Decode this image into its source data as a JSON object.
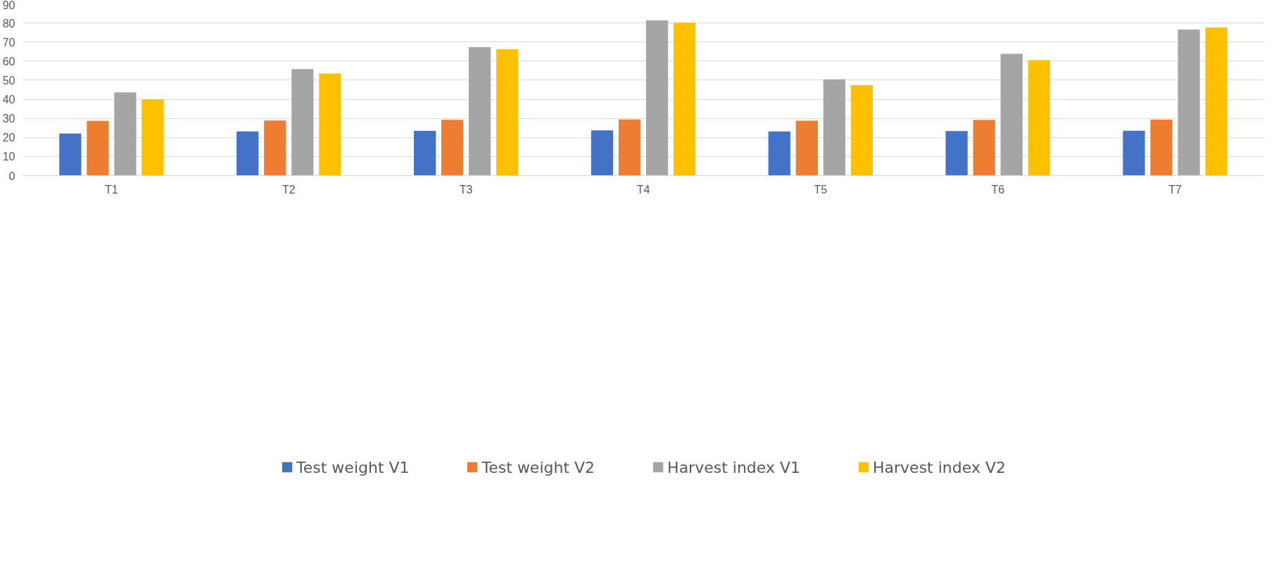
{
  "chart_data": {
    "type": "bar",
    "categories": [
      "T1",
      "T2",
      "T3",
      "T4",
      "T5",
      "T6",
      "T7"
    ],
    "series": [
      {
        "name": "Test weight V1",
        "color": "#4472c4",
        "values": [
          22.0,
          23.1,
          23.4,
          23.7,
          23.1,
          23.3,
          23.5
        ]
      },
      {
        "name": "Test weight V2",
        "color": "#ed7d31",
        "values": [
          28.7,
          28.9,
          29.2,
          29.4,
          28.8,
          29.1,
          29.3
        ]
      },
      {
        "name": "Harvest index V1",
        "color": "#a5a5a5",
        "values": [
          43.6,
          55.8,
          67.3,
          81.3,
          50.4,
          63.8,
          76.5
        ]
      },
      {
        "name": "Harvest index V2",
        "color": "#ffc000",
        "values": [
          40.0,
          53.5,
          66.2,
          80.1,
          47.4,
          60.5,
          77.6
        ]
      }
    ],
    "ylim": [
      0,
      90
    ],
    "yticks": [
      0,
      10,
      20,
      30,
      40,
      50,
      60,
      70,
      80,
      90
    ],
    "grid": "y",
    "legend": "bottom"
  }
}
